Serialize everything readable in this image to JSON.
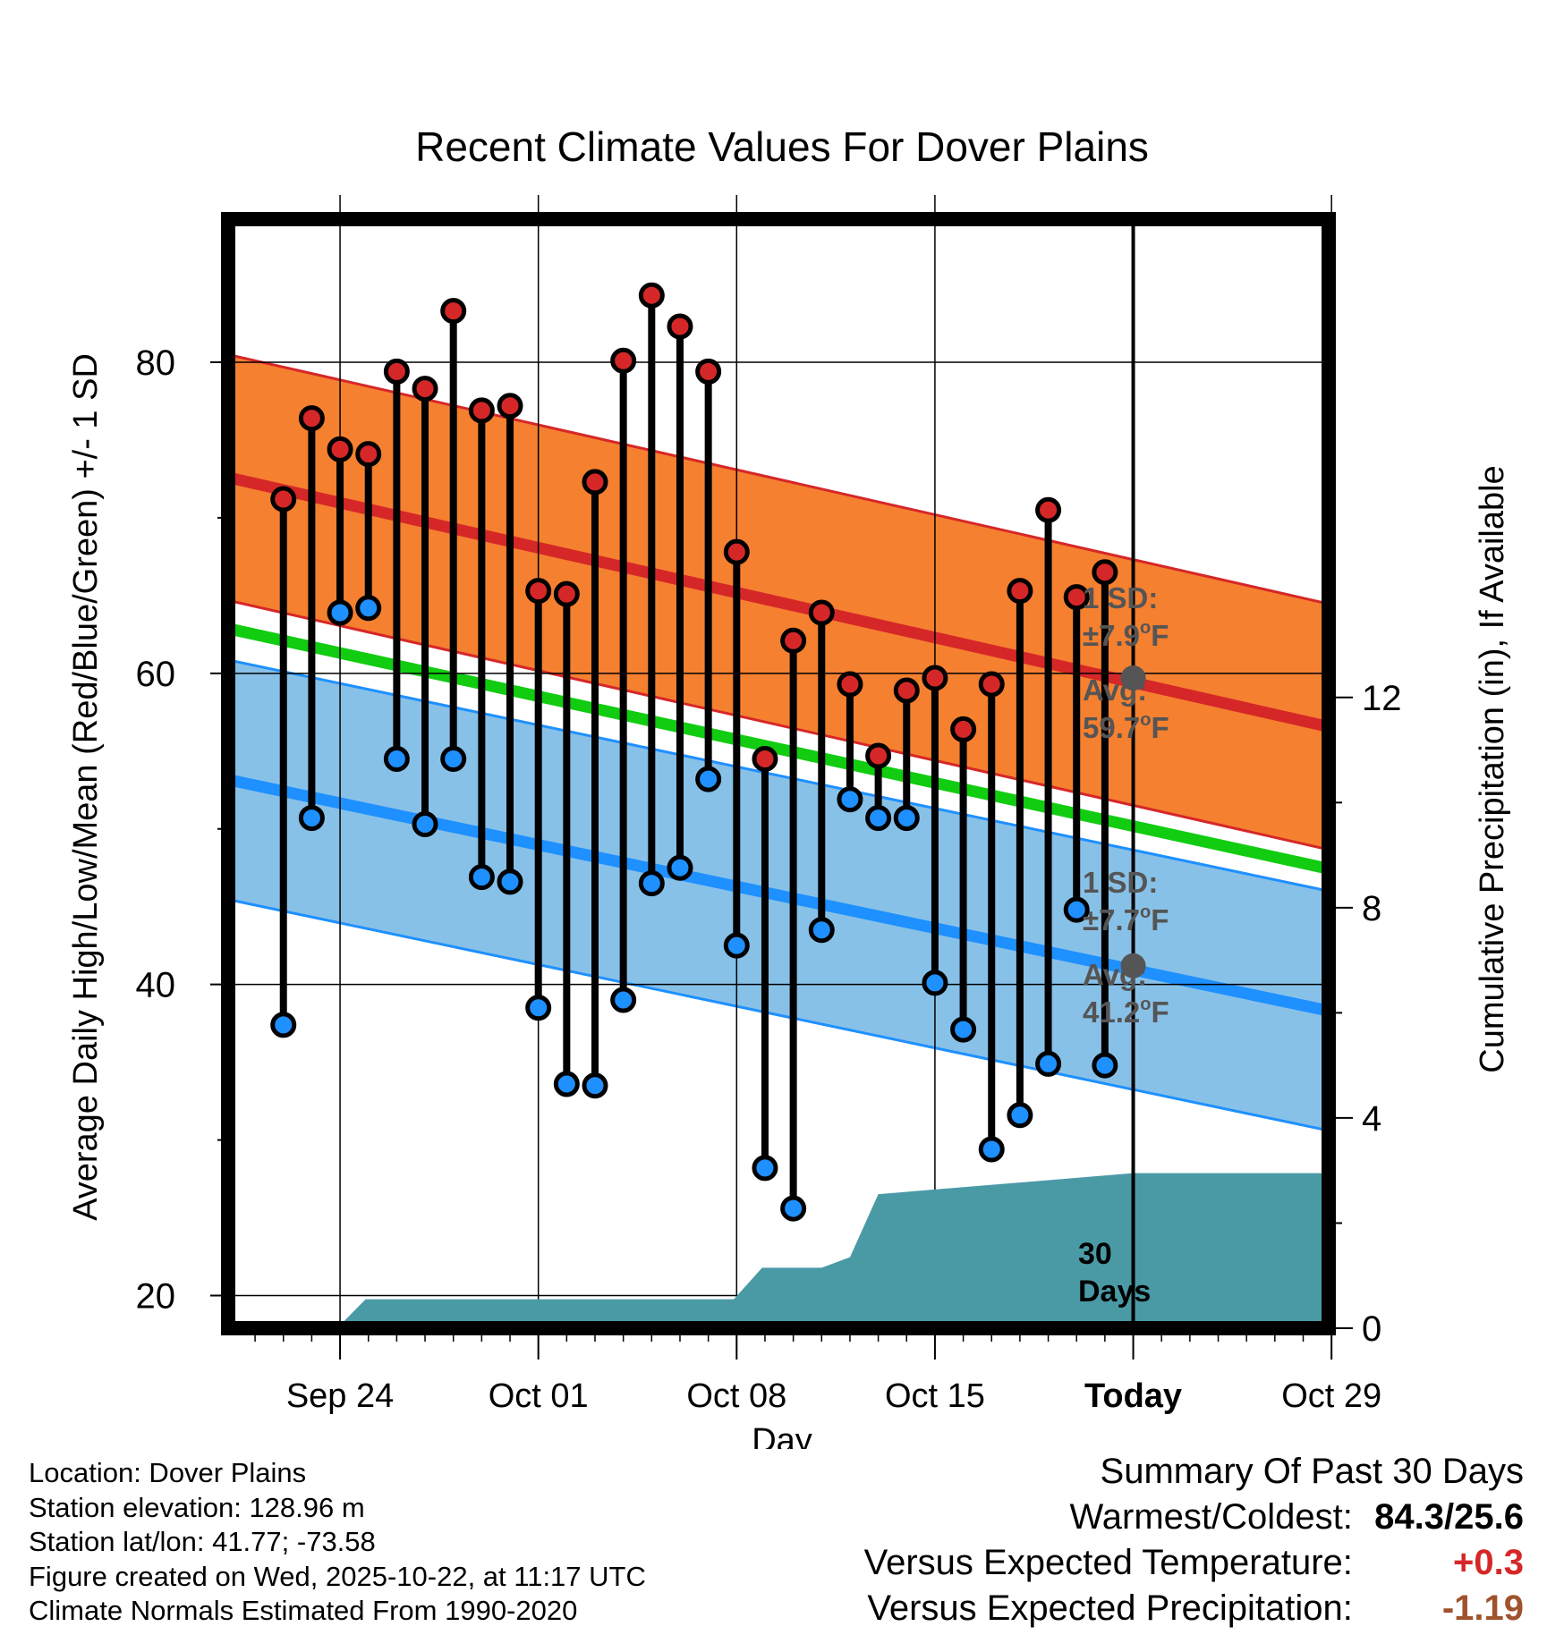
{
  "colors": {
    "high_line": "#d62728",
    "high_band": "#f58030",
    "low_line": "#1e90ff",
    "low_band": "#88c1e8",
    "mean_line": "#11cc11",
    "precip_fill": "#4a9aa6",
    "high_dot": "#d62728",
    "low_dot": "#1e90ff",
    "temp_departure": "#d62728",
    "precip_departure": "#a0522d",
    "annotation": "#555555"
  },
  "chart_data": {
    "type": "line",
    "title": "Recent Climate Values For Dover Plains",
    "xlabel": "Day",
    "ylabel": "Average Daily High/Low/Mean (Red/Blue/Green) +/- 1 SD",
    "y2label": "Cumulative Precipitation (in), If Available",
    "ylim": [
      17.9,
      89.2
    ],
    "y2lim": [
      0,
      21.1
    ],
    "yticks": [
      20,
      40,
      60,
      80
    ],
    "y2ticks": [
      0,
      4,
      8,
      12
    ],
    "xlim": [
      -0.95,
      37.9
    ],
    "xtick_labels": [
      {
        "day": 3,
        "label": "Sep 24"
      },
      {
        "day": 10,
        "label": "Oct 01"
      },
      {
        "day": 17,
        "label": "Oct 08"
      },
      {
        "day": 24,
        "label": "Oct 15"
      },
      {
        "day": 31,
        "label": "Today"
      },
      {
        "day": 38,
        "label": "Oct 29"
      }
    ],
    "today_day": 31,
    "window_label": [
      "30",
      "Days"
    ],
    "days": [
      1,
      2,
      3,
      4,
      5,
      6,
      7,
      8,
      9,
      10,
      11,
      12,
      13,
      14,
      15,
      16,
      17,
      18,
      19,
      20,
      21,
      22,
      23,
      24,
      25,
      26,
      27,
      28,
      29,
      30
    ],
    "highs": [
      71.2,
      76.4,
      74.4,
      74.1,
      79.4,
      78.3,
      83.3,
      76.9,
      77.2,
      65.3,
      65.1,
      72.3,
      80.1,
      84.3,
      82.3,
      79.4,
      67.8,
      54.5,
      62.1,
      63.9,
      59.3,
      54.7,
      58.9,
      59.7,
      56.4,
      59.3,
      65.3,
      70.5,
      64.9,
      66.5
    ],
    "lows": [
      37.4,
      50.7,
      63.9,
      64.2,
      54.5,
      50.3,
      54.5,
      46.9,
      46.6,
      38.5,
      33.6,
      33.5,
      39.0,
      46.5,
      47.5,
      53.2,
      42.5,
      28.2,
      25.6,
      43.5,
      51.9,
      50.7,
      50.7,
      40.1,
      37.1,
      29.4,
      31.6,
      34.9,
      44.8,
      34.8
    ],
    "normal_high": {
      "start_day": 0,
      "end_day": 40,
      "start": 72.2,
      "end": 55.7,
      "sd": 7.9,
      "today_avg": 59.7
    },
    "normal_low": {
      "start_day": 0,
      "end_day": 40,
      "start": 52.8,
      "end": 37.5,
      "sd": 7.7,
      "today_avg": 41.2
    },
    "normal_mean": {
      "start_day": 0,
      "end_day": 40,
      "start": 62.5,
      "end": 46.6
    },
    "precip_cumulative": {
      "x": [
        -0.95,
        2.9,
        3.9,
        16.9,
        17.9,
        20.0,
        21.0,
        22.0,
        31.0,
        40.0
      ],
      "y": [
        0,
        0,
        0.55,
        0.55,
        1.15,
        1.15,
        1.35,
        2.55,
        2.95,
        2.95
      ]
    },
    "high_annotation": {
      "sd_label": "1 SD:",
      "sd_value": "±7.9",
      "avg_label": "Avg:",
      "avg_value": "59.7",
      "unit": "F"
    },
    "low_annotation": {
      "sd_label": "1 SD:",
      "sd_value": "±7.7",
      "avg_label": "Avg:",
      "avg_value": "41.2",
      "unit": "F"
    }
  },
  "footer": {
    "location": "Location: Dover Plains",
    "elevation": "Station elevation: 128.96 m",
    "latlon": "Station lat/lon: 41.77; -73.58",
    "created": "Figure created on Wed, 2025-10-22, at 11:17 UTC",
    "normals": "Climate Normals Estimated From 1990-2020"
  },
  "summary": {
    "title": "Summary Of Past 30 Days",
    "warm_cold_label": "Warmest/Coldest:",
    "warm_cold_value": "84.3/25.6",
    "temp_label": "Versus Expected Temperature:",
    "temp_value": "+0.3",
    "precip_label": "Versus Expected Precipitation:",
    "precip_value": "-1.19"
  }
}
